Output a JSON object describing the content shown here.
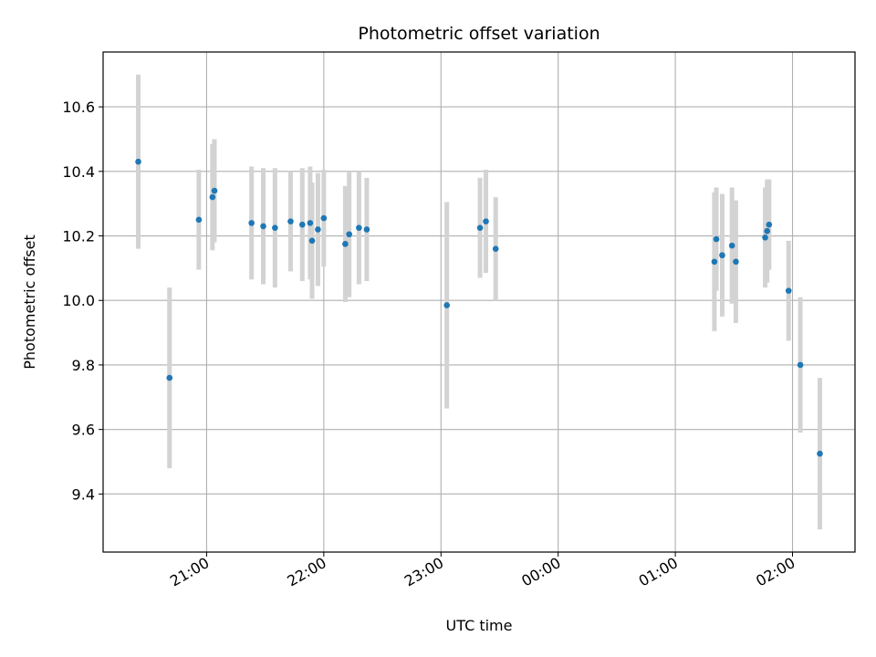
{
  "chart_data": {
    "type": "scatter",
    "title": "Photometric offset variation",
    "xlabel": "UTC time",
    "ylabel": "Photometric offset",
    "grid": true,
    "colors": {
      "point": "#1f77b4",
      "errorbar": "#d3d3d3",
      "grid": "#b0b0b0"
    },
    "xlim": [
      "20:07",
      "02:32"
    ],
    "ylim": [
      9.22,
      10.77
    ],
    "x_ticks": [
      "21:00",
      "22:00",
      "23:00",
      "00:00",
      "01:00",
      "02:00"
    ],
    "y_ticks": [
      9.4,
      9.6,
      9.8,
      10.0,
      10.2,
      10.4,
      10.6
    ],
    "y_tick_labels": [
      "9.4",
      "9.6",
      "9.8",
      "10.0",
      "10.2",
      "10.4",
      "10.6"
    ],
    "series": [
      {
        "points": [
          {
            "x": "20:25",
            "y": 10.43,
            "err": 0.27
          },
          {
            "x": "20:41",
            "y": 9.76,
            "err": 0.28
          },
          {
            "x": "20:56",
            "y": 10.25,
            "err": 0.155
          },
          {
            "x": "21:03",
            "y": 10.32,
            "err": 0.165
          },
          {
            "x": "21:04",
            "y": 10.34,
            "err": 0.16
          },
          {
            "x": "21:23",
            "y": 10.24,
            "err": 0.175
          },
          {
            "x": "21:29",
            "y": 10.23,
            "err": 0.18
          },
          {
            "x": "21:35",
            "y": 10.225,
            "err": 0.185
          },
          {
            "x": "21:43",
            "y": 10.245,
            "err": 0.155
          },
          {
            "x": "21:49",
            "y": 10.235,
            "err": 0.175
          },
          {
            "x": "21:53",
            "y": 10.24,
            "err": 0.175
          },
          {
            "x": "21:54",
            "y": 10.185,
            "err": 0.18
          },
          {
            "x": "21:57",
            "y": 10.22,
            "err": 0.175
          },
          {
            "x": "22:00",
            "y": 10.255,
            "err": 0.15
          },
          {
            "x": "22:11",
            "y": 10.175,
            "err": 0.18
          },
          {
            "x": "22:13",
            "y": 10.205,
            "err": 0.195
          },
          {
            "x": "22:18",
            "y": 10.225,
            "err": 0.175
          },
          {
            "x": "22:22",
            "y": 10.22,
            "err": 0.16
          },
          {
            "x": "23:03",
            "y": 9.985,
            "err": 0.32
          },
          {
            "x": "23:20",
            "y": 10.225,
            "err": 0.155
          },
          {
            "x": "23:23",
            "y": 10.245,
            "err": 0.16
          },
          {
            "x": "23:28",
            "y": 10.16,
            "err": 0.16
          },
          {
            "x": "01:20",
            "y": 10.12,
            "err": 0.215
          },
          {
            "x": "01:21",
            "y": 10.19,
            "err": 0.16
          },
          {
            "x": "01:24",
            "y": 10.14,
            "err": 0.19
          },
          {
            "x": "01:29",
            "y": 10.17,
            "err": 0.18
          },
          {
            "x": "01:31",
            "y": 10.12,
            "err": 0.19
          },
          {
            "x": "01:46",
            "y": 10.195,
            "err": 0.155
          },
          {
            "x": "01:47",
            "y": 10.215,
            "err": 0.16
          },
          {
            "x": "01:48",
            "y": 10.235,
            "err": 0.14
          },
          {
            "x": "01:58",
            "y": 10.03,
            "err": 0.155
          },
          {
            "x": "02:04",
            "y": 9.8,
            "err": 0.21
          },
          {
            "x": "02:14",
            "y": 9.525,
            "err": 0.235
          }
        ]
      }
    ]
  }
}
